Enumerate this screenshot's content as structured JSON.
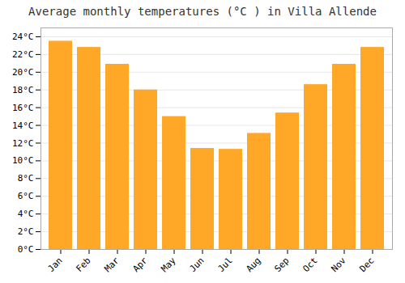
{
  "chart_data": {
    "type": "bar",
    "title": "Average monthly temperatures (°C ) in Villa Allende",
    "categories": [
      "Jan",
      "Feb",
      "Mar",
      "Apr",
      "May",
      "Jun",
      "Jul",
      "Aug",
      "Sep",
      "Oct",
      "Nov",
      "Dec"
    ],
    "values": [
      23.5,
      22.8,
      20.9,
      18.0,
      15.0,
      11.4,
      11.3,
      13.1,
      15.4,
      18.6,
      20.9,
      22.8
    ],
    "color": "#FFA726",
    "ylim": [
      0,
      25
    ],
    "yticks": [
      {
        "value": 0,
        "label": "0°C"
      },
      {
        "value": 2,
        "label": "2°C"
      },
      {
        "value": 4,
        "label": "4°C"
      },
      {
        "value": 6,
        "label": "6°C"
      },
      {
        "value": 8,
        "label": "8°C"
      },
      {
        "value": 10,
        "label": "10°C"
      },
      {
        "value": 12,
        "label": "12°C"
      },
      {
        "value": 14,
        "label": "14°C"
      },
      {
        "value": 16,
        "label": "16°C"
      },
      {
        "value": 18,
        "label": "18°C"
      },
      {
        "value": 20,
        "label": "20°C"
      },
      {
        "value": 22,
        "label": "22°C"
      },
      {
        "value": 24,
        "label": "24°C"
      }
    ],
    "grid": true
  }
}
